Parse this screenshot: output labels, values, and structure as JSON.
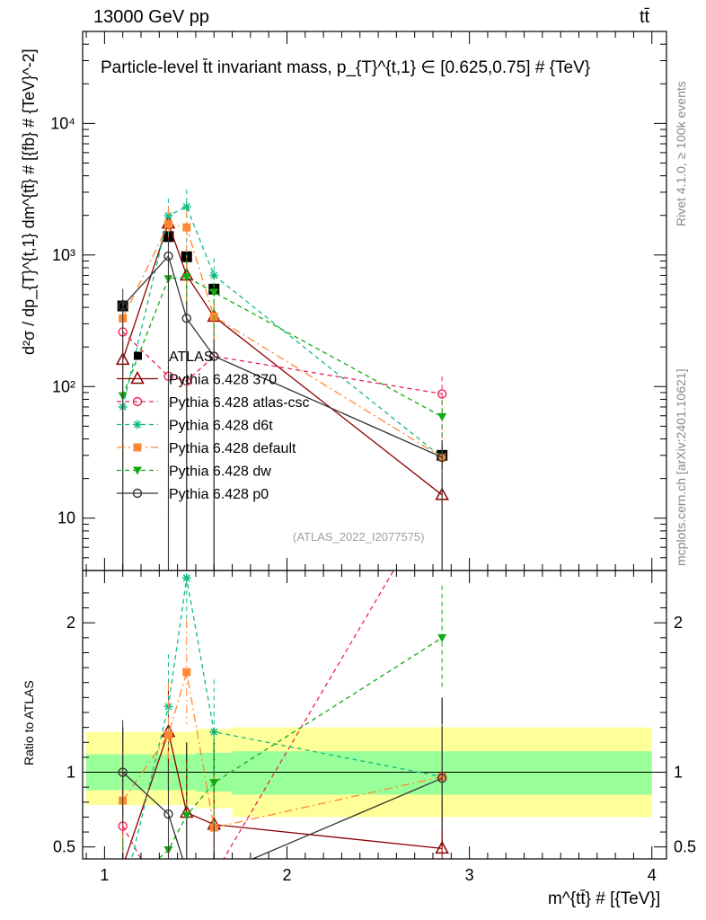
{
  "header": {
    "energy": "13000 GeV pp",
    "process": "tt̄"
  },
  "side": {
    "rivet": "Rivet 4.1.0, ≥ 100k events",
    "url": "mcplots.cern.ch [arXiv:2401.10621]"
  },
  "chart_data": {
    "type": "line",
    "title": "Particle-level t̄t invariant mass, p_{T}^{t,1} ∈ [0.625,0.75] # {TeV}",
    "ylabel": "d²σ / dp_{T}^{t,1} dm^{tt̄} # [{fb} # {TeV}^-2]",
    "ratio_ylabel": "Ratio to ATLAS",
    "xlabel": "m^{tt̄} # [{TeV}]",
    "watermark": "(ATLAS_2022_I2077575)",
    "xlim": [
      0.88,
      4.08
    ],
    "ylim": [
      4,
      50000
    ],
    "ratio_ylim": [
      0.42,
      2.35
    ],
    "yscale": "log",
    "x_ticks": [
      {
        "v": 1,
        "label": "1"
      },
      {
        "v": 2,
        "label": "2"
      },
      {
        "v": 3,
        "label": "3"
      },
      {
        "v": 4,
        "label": "4"
      }
    ],
    "y_ticks": [
      {
        "v": 10,
        "label": "10"
      },
      {
        "v": 100,
        "label": "10²"
      },
      {
        "v": 1000,
        "label": "10³"
      },
      {
        "v": 10000,
        "label": "10⁴"
      }
    ],
    "ratio_ticks": [
      {
        "v": 0.5,
        "label": "0.5"
      },
      {
        "v": 1,
        "label": "1"
      },
      {
        "v": 2,
        "label": "2"
      }
    ],
    "bins": [
      {
        "lo": 0.9,
        "hi": 1.25,
        "x": 1.1
      },
      {
        "lo": 1.25,
        "hi": 1.4,
        "x": 1.35
      },
      {
        "lo": 1.4,
        "hi": 1.5,
        "x": 1.45
      },
      {
        "lo": 1.5,
        "hi": 1.7,
        "x": 1.6
      },
      {
        "lo": 1.7,
        "hi": 4.0,
        "x": 2.85
      }
    ],
    "band_outer": [
      [
        0.78,
        1.27
      ],
      [
        0.78,
        1.27
      ],
      [
        0.78,
        1.27
      ],
      [
        0.76,
        1.29
      ],
      [
        0.7,
        1.3
      ]
    ],
    "band_inner": [
      [
        0.88,
        1.12
      ],
      [
        0.88,
        1.12
      ],
      [
        0.88,
        1.12
      ],
      [
        0.87,
        1.13
      ],
      [
        0.85,
        1.14
      ]
    ],
    "series": [
      {
        "name": "ATLAS",
        "color": "#000000",
        "dash": "",
        "marker": "square",
        "legend_marker": "square",
        "x": [
          1.1,
          1.35,
          1.45,
          1.6,
          2.85
        ],
        "values": [
          410,
          1380,
          970,
          550,
          30
        ],
        "err": [
          0.12,
          0.06,
          0.08,
          0.08,
          0.2
        ]
      },
      {
        "name": "Pythia 6.428 370",
        "color": "#8b0000",
        "dash": "",
        "marker": "triangle-open",
        "x": [
          1.1,
          1.35,
          1.45,
          1.6,
          2.85
        ],
        "values": [
          160,
          1740,
          700,
          340,
          15
        ],
        "ratio": [
          0.37,
          1.27,
          0.73,
          0.65,
          0.49
        ]
      },
      {
        "name": "Pythia 6.428 atlas-csc",
        "color": "#ee2255",
        "dash": "5,4",
        "marker": "circle-open",
        "x": [
          1.1,
          1.35,
          1.45,
          1.6,
          2.85
        ],
        "values": [
          260,
          120,
          110,
          170,
          88
        ],
        "ratio": [
          0.64,
          0.09,
          0.11,
          0.31,
          2.9
        ]
      },
      {
        "name": "Pythia 6.428 d6t",
        "color": "#11bb88",
        "dash": "5,4",
        "marker": "star",
        "x": [
          1.1,
          1.35,
          1.45,
          1.6,
          2.85
        ],
        "values": [
          70,
          1990,
          2330,
          700,
          29
        ],
        "ratio": [
          0.17,
          1.44,
          2.3,
          1.27,
          0.97
        ]
      },
      {
        "name": "Pythia 6.428 default",
        "color": "#ff8833",
        "dash": "9,4,2,4",
        "marker": "square-filled",
        "x": [
          1.1,
          1.35,
          1.45,
          1.6,
          2.85
        ],
        "values": [
          330,
          1720,
          1620,
          340,
          29
        ],
        "ratio": [
          0.81,
          1.25,
          1.67,
          0.63,
          0.97
        ]
      },
      {
        "name": "Pythia 6.428 dw",
        "color": "#11aa11",
        "dash": "5,4",
        "marker": "triangle-down",
        "x": [
          1.1,
          1.35,
          1.45,
          1.6,
          2.85
        ],
        "values": [
          85,
          660,
          680,
          520,
          59
        ],
        "ratio": [
          0.21,
          0.48,
          0.71,
          0.93,
          1.9
        ]
      },
      {
        "name": "Pythia 6.428 p0",
        "color": "#333333",
        "dash": "",
        "marker": "circle-open",
        "x": [
          1.1,
          1.35,
          1.45,
          1.6,
          2.85
        ],
        "values": [
          410,
          980,
          330,
          170,
          29
        ],
        "ratio": [
          1.0,
          0.72,
          0.34,
          0.31,
          0.96
        ]
      }
    ]
  }
}
